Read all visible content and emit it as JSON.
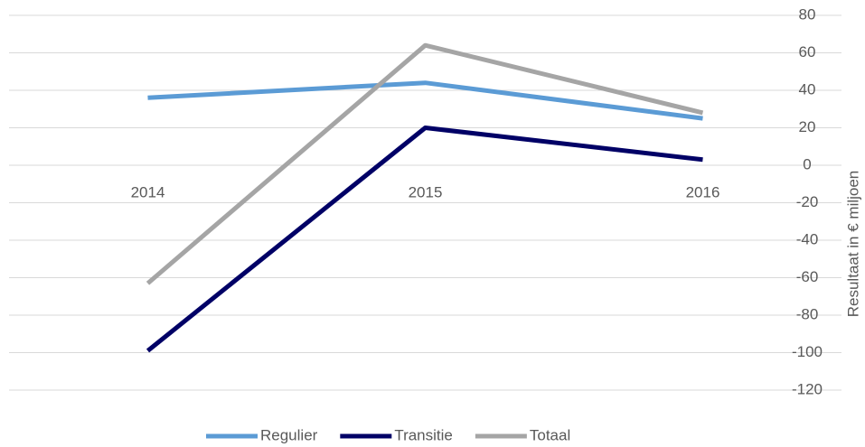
{
  "chart_data": {
    "type": "line",
    "categories": [
      "2014",
      "2015",
      "2016"
    ],
    "series": [
      {
        "name": "Regulier",
        "color": "#5b9bd5",
        "values": [
          36,
          44,
          25
        ]
      },
      {
        "name": "Transitie",
        "color": "#000066",
        "values": [
          -99,
          20,
          3
        ]
      },
      {
        "name": "Totaal",
        "color": "#a5a5a5",
        "values": [
          -63,
          64,
          28
        ]
      }
    ],
    "y_axis_label": "Resultaat in € miljoen",
    "y_axis_side": "right",
    "ylim": [
      -120,
      80
    ],
    "yticks": [
      -120,
      -100,
      -80,
      -60,
      -40,
      -20,
      0,
      20,
      40,
      60,
      80
    ],
    "grid": true,
    "legend": "bottom"
  }
}
